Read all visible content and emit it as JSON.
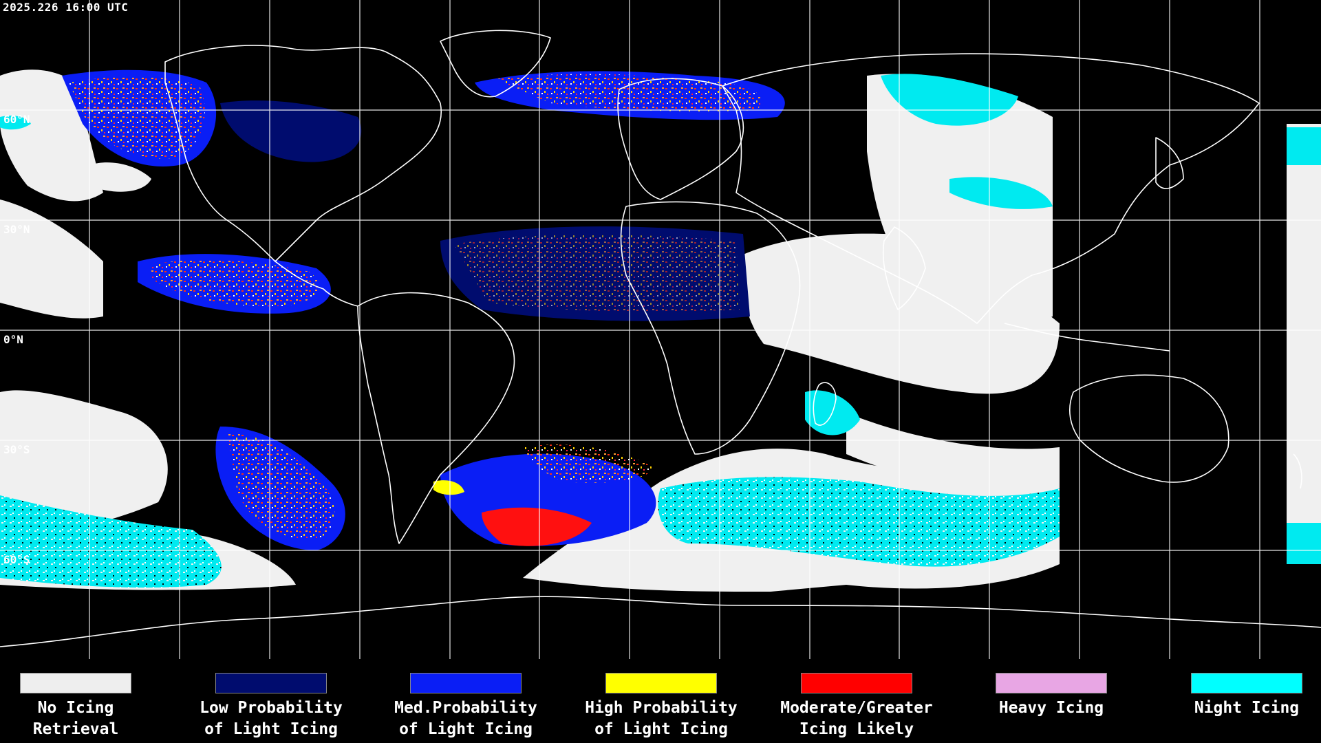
{
  "timestamp": "2025.226 16:00 UTC",
  "latitude_labels": [
    "60°S",
    "30°S",
    "0°N",
    "30°N",
    "60°N"
  ],
  "legend": [
    {
      "line1": "No Icing",
      "line2": "Retrieval",
      "color": "#eeeeee"
    },
    {
      "line1": "Low Probability",
      "line2": "of Light Icing",
      "color": "#000c6e"
    },
    {
      "line1": "Med.Probability",
      "line2": "of Light Icing",
      "color": "#0a1ef5"
    },
    {
      "line1": "High Probability",
      "line2": "of Light Icing",
      "color": "#ffff00"
    },
    {
      "line1": "Moderate/Greater",
      "line2": "Icing Likely",
      "color": "#ff0000"
    },
    {
      "line1": "Heavy Icing",
      "line2": "",
      "color": "#e8a6e4"
    },
    {
      "line1": "Night Icing",
      "line2": "",
      "color": "#00ffff"
    }
  ]
}
